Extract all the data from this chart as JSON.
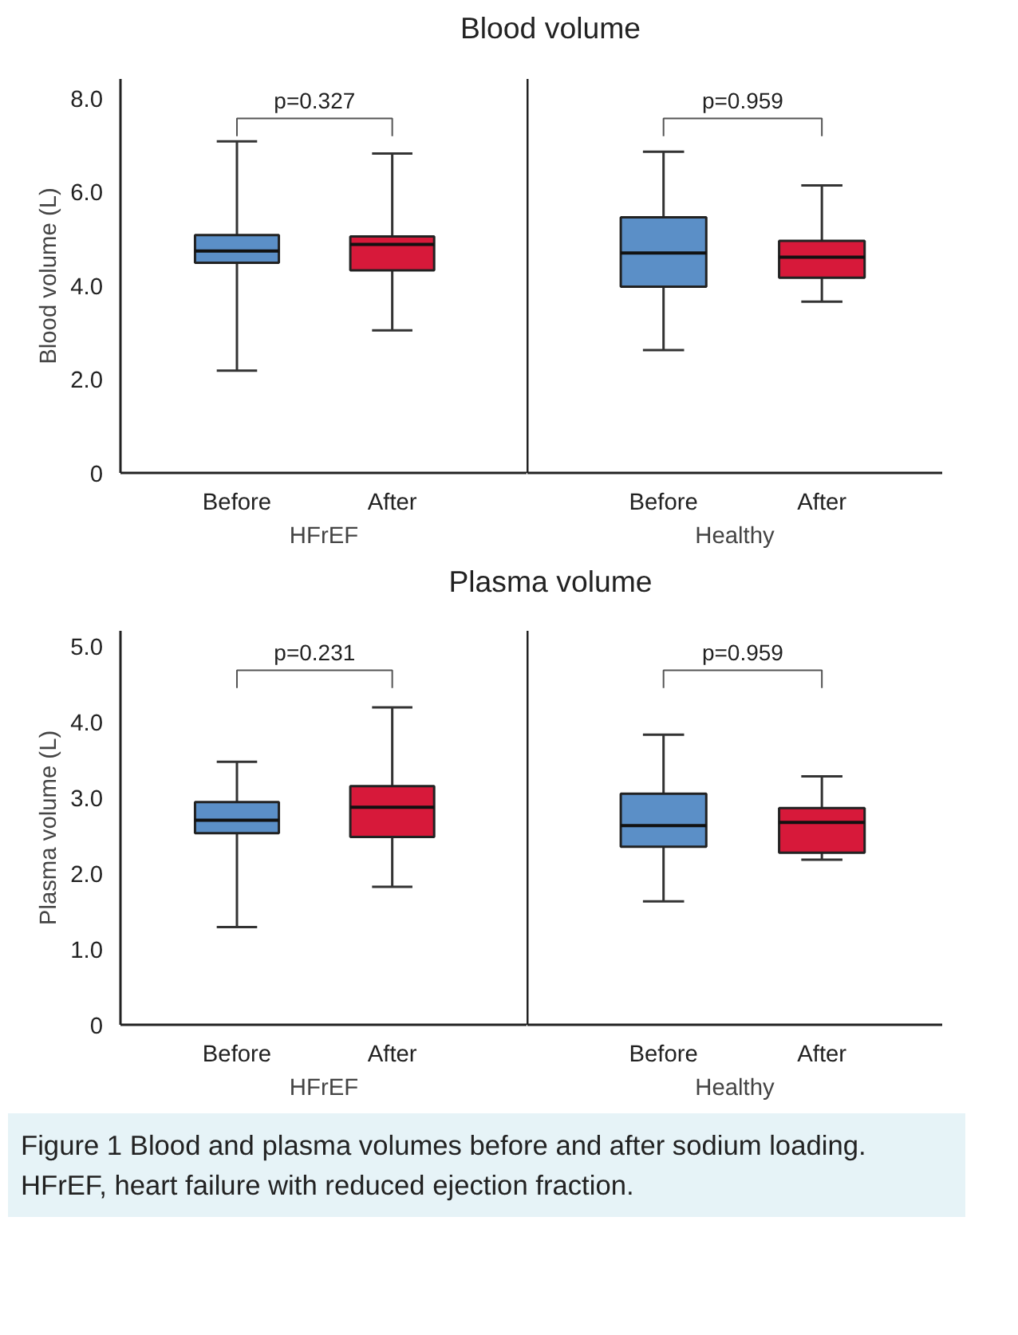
{
  "chart_data": [
    {
      "type": "box",
      "title": "Blood volume",
      "xlabel": "HFrEF",
      "ylabel": "Blood volume (L)",
      "categories": [
        "Before",
        "After"
      ],
      "colors": [
        "#5b8fc7",
        "#d7193a"
      ],
      "boxes": [
        {
          "low": 2.18,
          "q1": 4.48,
          "median": 4.73,
          "q3": 5.07,
          "high": 7.07
        },
        {
          "low": 3.04,
          "q1": 4.32,
          "median": 4.87,
          "q3": 5.04,
          "high": 6.81
        }
      ],
      "ylim": [
        0,
        8.4
      ],
      "yticks": [
        0,
        {
          "value": 2,
          "label": "2.0"
        },
        {
          "value": 4,
          "label": "4.0"
        },
        {
          "value": 6,
          "label": "6.0"
        },
        {
          "value": 8,
          "label": "8.0"
        }
      ],
      "grid": false,
      "annotations": [
        "p=0.327"
      ]
    },
    {
      "type": "box",
      "xlabel": "Healthy",
      "categories": [
        "Before",
        "After"
      ],
      "colors": [
        "#5b8fc7",
        "#d7193a"
      ],
      "boxes": [
        {
          "low": 2.62,
          "q1": 3.97,
          "median": 4.69,
          "q3": 5.45,
          "high": 6.85
        },
        {
          "low": 3.65,
          "q1": 4.16,
          "median": 4.6,
          "q3": 4.95,
          "high": 6.13
        }
      ],
      "ylim": [
        0,
        8.4
      ],
      "tick_labels": "x",
      "grid": false,
      "annotations": [
        "p=0.959"
      ]
    },
    {
      "type": "box",
      "title": "Plasma volume",
      "xlabel": "HFrEF",
      "ylabel": "Plasma volume (L)",
      "categories": [
        "Before",
        "After"
      ],
      "colors": [
        "#5b8fc7",
        "#d7193a"
      ],
      "boxes": [
        {
          "low": 1.29,
          "q1": 2.53,
          "median": 2.7,
          "q3": 2.94,
          "high": 3.47
        },
        {
          "low": 1.82,
          "q1": 2.48,
          "median": 2.87,
          "q3": 3.15,
          "high": 4.19
        }
      ],
      "ylim": [
        0,
        5.2
      ],
      "yticks": [
        0,
        {
          "value": 1,
          "label": "1.0"
        },
        {
          "value": 2,
          "label": "2.0"
        },
        {
          "value": 3,
          "label": "3.0"
        },
        {
          "value": 4,
          "label": "4.0"
        },
        {
          "value": 5,
          "label": "5.0"
        }
      ],
      "grid": false,
      "annotations": [
        "p=0.231"
      ]
    },
    {
      "type": "box",
      "xlabel": "Healthy",
      "categories": [
        "Before",
        "After"
      ],
      "colors": [
        "#5b8fc7",
        "#d7193a"
      ],
      "boxes": [
        {
          "low": 1.63,
          "q1": 2.35,
          "median": 2.63,
          "q3": 3.05,
          "high": 3.83
        },
        {
          "low": 2.18,
          "q1": 2.27,
          "median": 2.67,
          "q3": 2.86,
          "high": 3.28
        }
      ],
      "ylim": [
        0,
        5.2
      ],
      "tick_labels": "x",
      "grid": false,
      "annotations": [
        "p=0.959",
        "Figure 1 Blood and plasma volumes before and after sodium loading. HFrEF, heart failure with reduced ejection fraction."
      ]
    }
  ]
}
